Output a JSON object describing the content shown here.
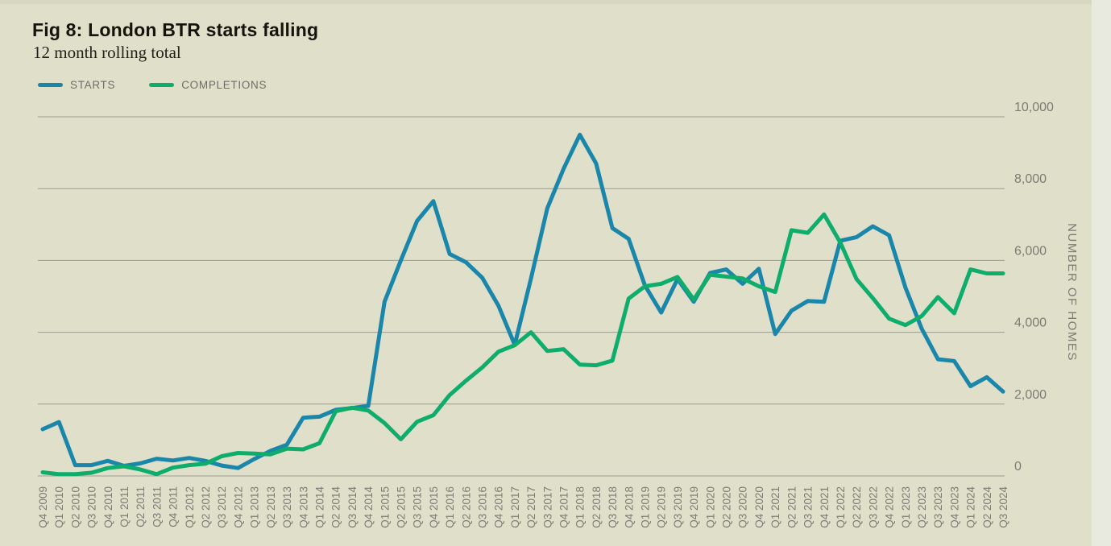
{
  "figure": {
    "title": "Fig 8: London BTR starts falling",
    "subtitle": "12 month rolling total"
  },
  "colors": {
    "background": "#dfdfca",
    "right_strip": "#e9eadf",
    "gridline": "#9c9d8e",
    "axis_text": "#7b7c74",
    "starts_line": "#1a86aa",
    "completions_line": "#0fad6c"
  },
  "chart_data": {
    "type": "line",
    "title": "Fig 8: London BTR starts falling",
    "subtitle": "12 month rolling total",
    "xlabel": "",
    "ylabel": "NUMBER OF HOMES",
    "ylim": [
      0,
      10000
    ],
    "y_ticks": [
      0,
      2000,
      4000,
      6000,
      8000,
      10000
    ],
    "y_tick_labels": [
      "0",
      "2,000",
      "4,000",
      "6,000",
      "8,000",
      "10,000"
    ],
    "grid": "horizontal",
    "legend_position": "top-left",
    "categories": [
      "Q4 2009",
      "Q1 2010",
      "Q2 2010",
      "Q3 2010",
      "Q4 2010",
      "Q1 2011",
      "Q2 2011",
      "Q3 2011",
      "Q4 2011",
      "Q1 2012",
      "Q2 2012",
      "Q3 2012",
      "Q4 2012",
      "Q1 2013",
      "Q2 2013",
      "Q3 2013",
      "Q4 2013",
      "Q1 2014",
      "Q2 2014",
      "Q3 2014",
      "Q4 2014",
      "Q1 2015",
      "Q2 2015",
      "Q3 2015",
      "Q4 2015",
      "Q1 2016",
      "Q2 2016",
      "Q3 2016",
      "Q4 2016",
      "Q1 2017",
      "Q2 2017",
      "Q3 2017",
      "Q4 2017",
      "Q1 2018",
      "Q2 2018",
      "Q3 2018",
      "Q4 2018",
      "Q1 2019",
      "Q2 2019",
      "Q3 2019",
      "Q4 2019",
      "Q1 2020",
      "Q2 2020",
      "Q3 2020",
      "Q4 2020",
      "Q1 2021",
      "Q2 2021",
      "Q3 2021",
      "Q4 2021",
      "Q1 2022",
      "Q2 2022",
      "Q3 2022",
      "Q4 2022",
      "Q1 2023",
      "Q2 2023",
      "Q3 2023",
      "Q4 2023",
      "Q1 2024",
      "Q2 2024",
      "Q3 2024"
    ],
    "series": [
      {
        "name": "STARTS",
        "color": "#1a86aa",
        "values": [
          1300,
          1500,
          300,
          300,
          420,
          280,
          350,
          480,
          430,
          500,
          420,
          290,
          220,
          470,
          700,
          870,
          1620,
          1650,
          1840,
          1890,
          1950,
          4850,
          6000,
          7100,
          7650,
          6180,
          5950,
          5520,
          4740,
          3650,
          5500,
          7450,
          8550,
          9500,
          8700,
          6900,
          6600,
          5300,
          4550,
          5480,
          4850,
          5650,
          5750,
          5350,
          5770,
          3950,
          4600,
          4870,
          4850,
          6550,
          6650,
          6950,
          6700,
          5250,
          4100,
          3250,
          3200,
          2500,
          2750,
          2350
        ]
      },
      {
        "name": "COMPLETIONS",
        "color": "#0fad6c",
        "values": [
          100,
          50,
          50,
          90,
          220,
          270,
          180,
          50,
          230,
          300,
          340,
          550,
          640,
          620,
          600,
          760,
          740,
          910,
          1800,
          1900,
          1820,
          1470,
          1020,
          1510,
          1690,
          2250,
          2650,
          3020,
          3460,
          3640,
          4000,
          3480,
          3530,
          3100,
          3080,
          3210,
          4940,
          5280,
          5350,
          5540,
          4910,
          5600,
          5550,
          5500,
          5280,
          5120,
          6840,
          6770,
          7280,
          6500,
          5480,
          4950,
          4380,
          4200,
          4450,
          4980,
          4530,
          5750,
          5640,
          5640
        ]
      }
    ]
  }
}
